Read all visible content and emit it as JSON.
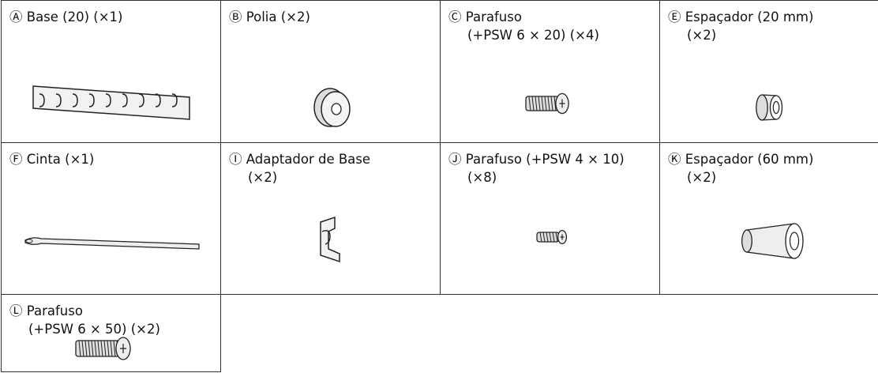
{
  "parts": [
    {
      "letter": "Ⓐ",
      "lines": [
        "Base (20) (×1)"
      ]
    },
    {
      "letter": "Ⓑ",
      "lines": [
        "Polia (×2)"
      ]
    },
    {
      "letter": "Ⓒ",
      "lines": [
        "Parafuso",
        "(+PSW 6 × 20) (×4)"
      ]
    },
    {
      "letter": "Ⓔ",
      "lines": [
        "Espaçador (20 mm)",
        "(×2)"
      ]
    },
    {
      "letter": "Ⓕ",
      "lines": [
        "Cinta (×1)"
      ]
    },
    {
      "letter": "Ⓘ",
      "lines": [
        "Adaptador de Base",
        "(×2)"
      ]
    },
    {
      "letter": "Ⓙ",
      "lines": [
        "Parafuso (+PSW 4 × 10)",
        "(×8)"
      ]
    },
    {
      "letter": "Ⓚ",
      "lines": [
        "Espaçador (60 mm)",
        "(×2)"
      ]
    },
    {
      "letter": "Ⓛ",
      "lines": [
        "Parafuso",
        "(+PSW 6 × 50) (×2)"
      ]
    }
  ]
}
